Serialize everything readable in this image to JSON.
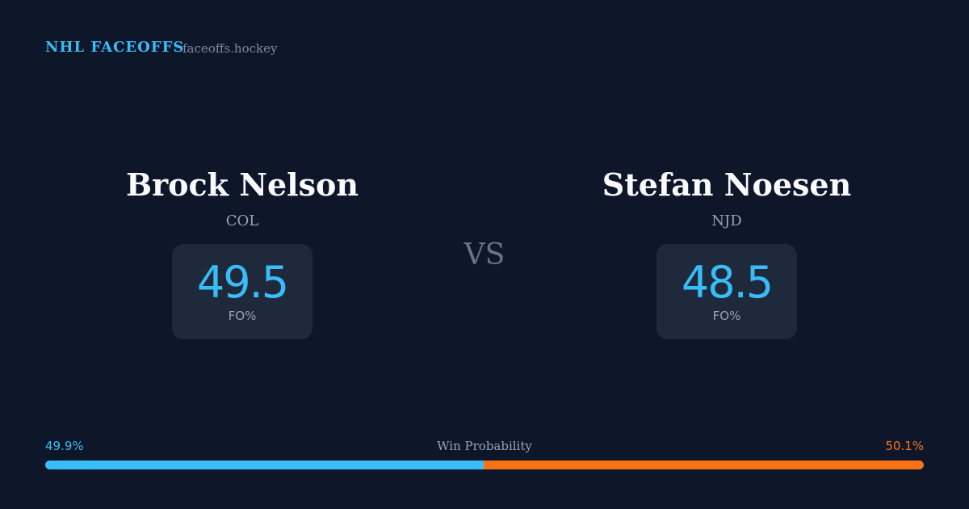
{
  "header": {
    "brand": "NHL FACEOFFS",
    "site": "faceoffs.hockey"
  },
  "players": [
    {
      "name": "Brock Nelson",
      "team": "COL",
      "stat_value": 49.5,
      "stat_label": "FO%"
    },
    {
      "name": "Stefan Noesen",
      "team": "NJD",
      "stat_value": 48.5,
      "stat_label": "FO%"
    }
  ],
  "versus": "VS",
  "win_probability": {
    "label": "Win Probability",
    "left": {
      "value": 49.9,
      "label": "49.9%",
      "color": "#38bdf8"
    },
    "right": {
      "value": 50.1,
      "label": "50.1%",
      "color": "#f97316"
    }
  }
}
